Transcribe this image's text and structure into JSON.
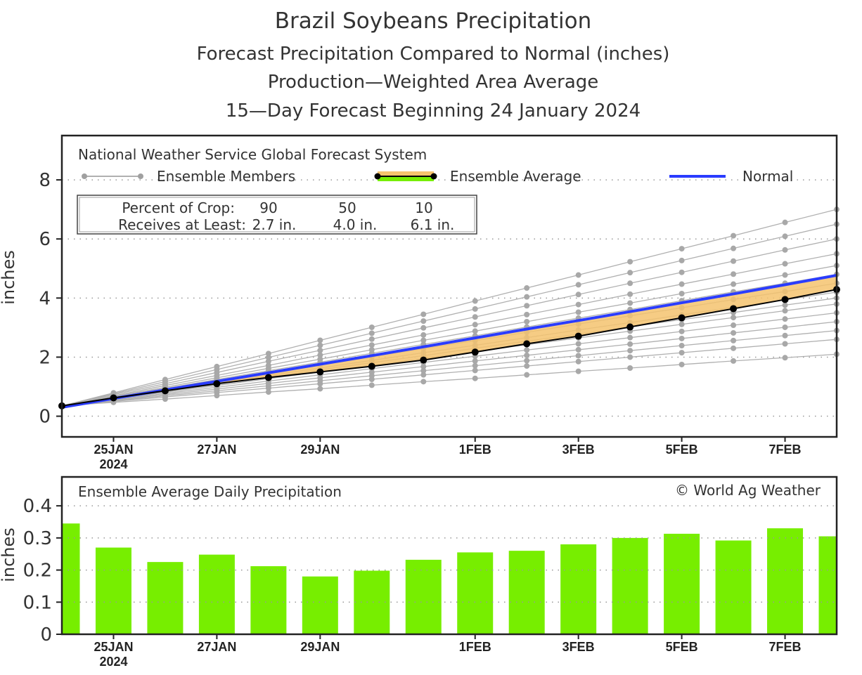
{
  "chart_data": [
    {
      "type": "line",
      "title": "Brazil Soybeans Precipitation",
      "subtitles": [
        "Forecast Precipitation Compared to Normal (inches)",
        "Production—Weighted Area Average",
        "15—Day Forecast Beginning 24 January 2024"
      ],
      "ylabel": "inches",
      "ylim": [
        -0.7,
        9.5
      ],
      "yticks": [
        0,
        2,
        4,
        6,
        8
      ],
      "x": [
        "24JAN",
        "25JAN",
        "26JAN",
        "27JAN",
        "28JAN",
        "29JAN",
        "30JAN",
        "31JAN",
        "1FEB",
        "2FEB",
        "3FEB",
        "4FEB",
        "5FEB",
        "6FEB",
        "7FEB",
        "8FEB"
      ],
      "xtick_labels": [
        {
          "day": 1,
          "label": "25JAN",
          "sublabel": "2024"
        },
        {
          "day": 3,
          "label": "27JAN"
        },
        {
          "day": 5,
          "label": "29JAN"
        },
        {
          "day": 8,
          "label": "1FEB"
        },
        {
          "day": 10,
          "label": "3FEB"
        },
        {
          "day": 12,
          "label": "5FEB"
        },
        {
          "day": 14,
          "label": "7FEB"
        }
      ],
      "grid": "dotted horizontal",
      "model_label": "National Weather Service Global Forecast System",
      "legend": {
        "members": "Ensemble Members",
        "average": "Ensemble Average",
        "normal": "Normal"
      },
      "crop_table": {
        "row1_label": "Percent of Crop:",
        "row1": [
          "90",
          "50",
          "10"
        ],
        "row2_label": "Receives at Least:",
        "row2": [
          "2.7 in.",
          "4.0 in.",
          "6.1 in."
        ]
      },
      "series": {
        "ensemble_average": [
          0.35,
          0.62,
          0.86,
          1.1,
          1.31,
          1.5,
          1.69,
          1.9,
          2.17,
          2.45,
          2.71,
          3.02,
          3.33,
          3.64,
          3.95,
          4.29
        ],
        "normal": [
          0.3,
          0.6,
          0.89,
          1.18,
          1.47,
          1.76,
          2.05,
          2.35,
          2.65,
          2.95,
          3.24,
          3.54,
          3.84,
          4.14,
          4.45,
          4.77
        ],
        "ensemble_members": [
          [
            0.35,
            0.79,
            1.24,
            1.68,
            2.12,
            2.57,
            3.01,
            3.45,
            3.9,
            4.34,
            4.78,
            5.23,
            5.67,
            6.11,
            6.56,
            7.0
          ],
          [
            0.35,
            0.76,
            1.17,
            1.58,
            1.99,
            2.4,
            2.81,
            3.22,
            3.63,
            4.04,
            4.45,
            4.86,
            5.27,
            5.68,
            6.09,
            6.5
          ],
          [
            0.35,
            0.73,
            1.1,
            1.48,
            1.86,
            2.23,
            2.61,
            2.99,
            3.36,
            3.74,
            4.12,
            4.5,
            4.87,
            5.25,
            5.63,
            6.0
          ],
          [
            0.35,
            0.69,
            1.04,
            1.38,
            1.72,
            2.07,
            2.41,
            2.75,
            3.1,
            3.44,
            3.78,
            4.13,
            4.47,
            4.81,
            5.16,
            5.5
          ],
          [
            0.35,
            0.67,
            0.98,
            1.3,
            1.62,
            1.93,
            2.25,
            2.57,
            2.88,
            3.2,
            3.52,
            3.83,
            4.15,
            4.47,
            4.78,
            5.1
          ],
          [
            0.35,
            0.65,
            0.94,
            1.24,
            1.54,
            1.83,
            2.13,
            2.43,
            2.72,
            3.02,
            3.32,
            3.61,
            3.91,
            4.21,
            4.5,
            4.8
          ],
          [
            0.35,
            0.63,
            0.9,
            1.18,
            1.46,
            1.73,
            2.01,
            2.29,
            2.56,
            2.84,
            3.12,
            3.4,
            3.67,
            3.95,
            4.22,
            4.5
          ],
          [
            0.35,
            0.61,
            0.86,
            1.12,
            1.38,
            1.63,
            1.89,
            2.15,
            2.4,
            2.66,
            2.92,
            3.17,
            3.43,
            3.69,
            3.94,
            4.2
          ],
          [
            0.35,
            0.59,
            0.84,
            1.08,
            1.32,
            1.57,
            1.81,
            2.05,
            2.3,
            2.54,
            2.78,
            3.03,
            3.27,
            3.51,
            3.76,
            4.0
          ],
          [
            0.35,
            0.58,
            0.81,
            1.04,
            1.27,
            1.5,
            1.73,
            1.96,
            2.19,
            2.42,
            2.65,
            2.88,
            3.11,
            3.34,
            3.57,
            3.8
          ],
          [
            0.35,
            0.56,
            0.77,
            0.98,
            1.19,
            1.4,
            1.61,
            1.82,
            2.03,
            2.24,
            2.45,
            2.66,
            2.87,
            3.08,
            3.29,
            3.5
          ],
          [
            0.35,
            0.54,
            0.73,
            0.92,
            1.11,
            1.3,
            1.49,
            1.68,
            1.87,
            2.06,
            2.25,
            2.44,
            2.63,
            2.82,
            3.01,
            3.2
          ],
          [
            0.35,
            0.52,
            0.69,
            0.86,
            1.03,
            1.2,
            1.37,
            1.54,
            1.71,
            1.88,
            2.05,
            2.22,
            2.39,
            2.56,
            2.73,
            2.9
          ],
          [
            0.35,
            0.5,
            0.65,
            0.8,
            0.95,
            1.1,
            1.25,
            1.4,
            1.55,
            1.7,
            1.85,
            2.0,
            2.15,
            2.3,
            2.45,
            2.6
          ],
          [
            0.35,
            0.47,
            0.58,
            0.7,
            0.82,
            0.93,
            1.05,
            1.17,
            1.28,
            1.4,
            1.52,
            1.63,
            1.75,
            1.87,
            1.98,
            2.1
          ]
        ]
      },
      "colors": {
        "members": "#b0b0b0",
        "average": "#000000",
        "normal": "#2a3cff",
        "band_below_normal": "#f5c36e",
        "band_above_normal": "#77ee00"
      }
    },
    {
      "type": "bar",
      "title": "Ensemble Average Daily Precipitation",
      "copyright": "© World Ag Weather",
      "ylabel": "inches",
      "ylim": [
        0,
        0.49
      ],
      "yticks": [
        "0",
        "0.1",
        "0.2",
        "0.3",
        "0.4"
      ],
      "categories": [
        "24JAN",
        "25JAN",
        "26JAN",
        "27JAN",
        "28JAN",
        "29JAN",
        "30JAN",
        "31JAN",
        "1FEB",
        "2FEB",
        "3FEB",
        "4FEB",
        "5FEB",
        "6FEB",
        "7FEB",
        "8FEB"
      ],
      "values": [
        0.345,
        0.27,
        0.225,
        0.248,
        0.212,
        0.18,
        0.198,
        0.232,
        0.255,
        0.26,
        0.28,
        0.3,
        0.313,
        0.292,
        0.33,
        0.305
      ],
      "bar_color": "#77ee00"
    }
  ]
}
